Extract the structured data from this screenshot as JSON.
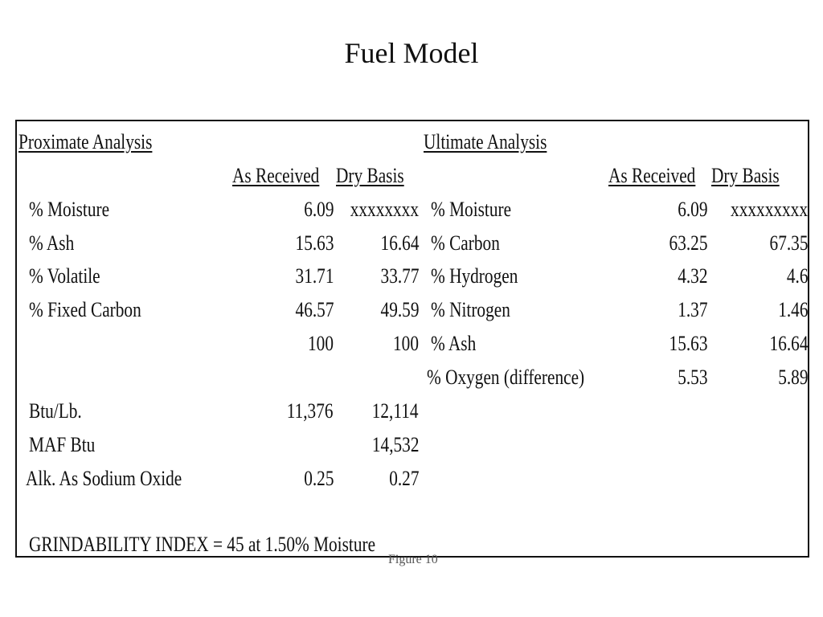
{
  "title": "Fuel Model",
  "proximate": {
    "heading": "Proximate Analysis",
    "col_as_received": "As Received",
    "col_dry_basis": "Dry Basis",
    "rows": [
      {
        "label": "% Moisture",
        "as_received": "6.09",
        "dry_basis": "xxxxxxxx"
      },
      {
        "label": "% Ash",
        "as_received": "15.63",
        "dry_basis": "16.64"
      },
      {
        "label": "% Volatile",
        "as_received": "31.71",
        "dry_basis": "33.77"
      },
      {
        "label": "% Fixed Carbon",
        "as_received": "46.57",
        "dry_basis": "49.59"
      },
      {
        "label": "",
        "as_received": "100",
        "dry_basis": "100"
      }
    ],
    "extra_rows": [
      {
        "label": "Btu/Lb.",
        "as_received": "11,376",
        "dry_basis": "12,114"
      },
      {
        "label": "MAF Btu",
        "as_received": "",
        "dry_basis": "14,532"
      },
      {
        "label": "Alk. As Sodium Oxide",
        "as_received": "0.25",
        "dry_basis": "0.27"
      }
    ]
  },
  "ultimate": {
    "heading": "Ultimate Analysis",
    "col_as_received": "As Received",
    "col_dry_basis": "Dry Basis",
    "rows": [
      {
        "label": "% Moisture",
        "as_received": "6.09",
        "dry_basis": "xxxxxxxxx"
      },
      {
        "label": "% Carbon",
        "as_received": "63.25",
        "dry_basis": "67.35"
      },
      {
        "label": "% Hydrogen",
        "as_received": "4.32",
        "dry_basis": "4.6"
      },
      {
        "label": "% Nitrogen",
        "as_received": "1.37",
        "dry_basis": "1.46"
      },
      {
        "label": "% Ash",
        "as_received": "15.63",
        "dry_basis": "16.64"
      },
      {
        "label": "% Oxygen (difference)",
        "as_received": "5.53",
        "dry_basis": "5.89"
      }
    ]
  },
  "grindability": "GRINDABILITY INDEX = 45 at 1.50% Moisture",
  "caption_fragment": "Figure 10"
}
